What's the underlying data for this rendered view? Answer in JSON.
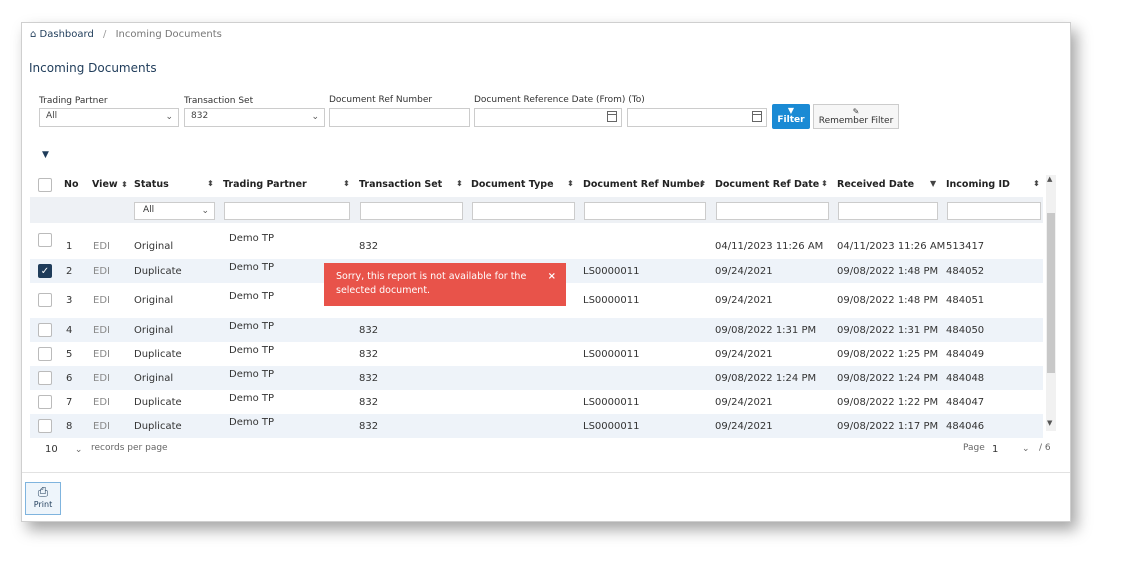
{
  "breadcrumb": {
    "home_label": "Dashboard",
    "current": "Incoming Documents"
  },
  "page_title": "Incoming Documents",
  "filters": {
    "trading_partner": {
      "label": "Trading Partner",
      "value": "All"
    },
    "transaction_set": {
      "label": "Transaction Set",
      "value": "832"
    },
    "doc_ref_number": {
      "label": "Document Ref Number",
      "value": ""
    },
    "doc_ref_date": {
      "label": "Document Reference Date (From) (To)",
      "from": "",
      "to": ""
    },
    "filter_button": "Filter",
    "remember_button": "Remember Filter"
  },
  "table": {
    "columns": [
      "No",
      "View",
      "Status",
      "Trading Partner",
      "Transaction Set",
      "Document Type",
      "Document Ref Number",
      "Document Ref Date",
      "Received Date",
      "Incoming ID"
    ],
    "status_filter": "All",
    "rows": [
      {
        "no": "1",
        "view": "EDI",
        "status": "Original",
        "partner": "Demo TP",
        "tset": "832",
        "doctype": "",
        "refnum": "",
        "refdate": "04/11/2023 11:26 AM",
        "received": "04/11/2023 11:26 AM",
        "id": "513417",
        "checked": false
      },
      {
        "no": "2",
        "view": "EDI",
        "status": "Duplicate",
        "partner": "Demo TP",
        "tset": "",
        "doctype": "",
        "refnum": "LS0000011",
        "refdate": "09/24/2021",
        "received": "09/08/2022 1:48 PM",
        "id": "484052",
        "checked": true
      },
      {
        "no": "3",
        "view": "EDI",
        "status": "Original",
        "partner": "Demo TP",
        "tset": "",
        "doctype": "",
        "refnum": "LS0000011",
        "refdate": "09/24/2021",
        "received": "09/08/2022 1:48 PM",
        "id": "484051",
        "checked": false
      },
      {
        "no": "4",
        "view": "EDI",
        "status": "Original",
        "partner": "Demo TP",
        "tset": "832",
        "doctype": "",
        "refnum": "",
        "refdate": "09/08/2022 1:31 PM",
        "received": "09/08/2022 1:31 PM",
        "id": "484050",
        "checked": false
      },
      {
        "no": "5",
        "view": "EDI",
        "status": "Duplicate",
        "partner": "Demo TP",
        "tset": "832",
        "doctype": "",
        "refnum": "LS0000011",
        "refdate": "09/24/2021",
        "received": "09/08/2022 1:25 PM",
        "id": "484049",
        "checked": false
      },
      {
        "no": "6",
        "view": "EDI",
        "status": "Original",
        "partner": "Demo TP",
        "tset": "832",
        "doctype": "",
        "refnum": "",
        "refdate": "09/08/2022 1:24 PM",
        "received": "09/08/2022 1:24 PM",
        "id": "484048",
        "checked": false
      },
      {
        "no": "7",
        "view": "EDI",
        "status": "Duplicate",
        "partner": "Demo TP",
        "tset": "832",
        "doctype": "",
        "refnum": "LS0000011",
        "refdate": "09/24/2021",
        "received": "09/08/2022 1:22 PM",
        "id": "484047",
        "checked": false
      },
      {
        "no": "8",
        "view": "EDI",
        "status": "Duplicate",
        "partner": "Demo TP",
        "tset": "832",
        "doctype": "",
        "refnum": "LS0000011",
        "refdate": "09/24/2021",
        "received": "09/08/2022 1:17 PM",
        "id": "484046",
        "checked": false
      }
    ]
  },
  "toast": {
    "message": "Sorry, this report is not available for the selected document.",
    "close": "×"
  },
  "pagination": {
    "per_page": "10",
    "per_page_label": "records per page",
    "page_label": "Page",
    "page": "1",
    "total": "/ 6"
  },
  "print_label": "Print",
  "colors": {
    "accent": "#1a8ad4",
    "toast": "#e8534a",
    "navy": "#1f3c5a"
  }
}
